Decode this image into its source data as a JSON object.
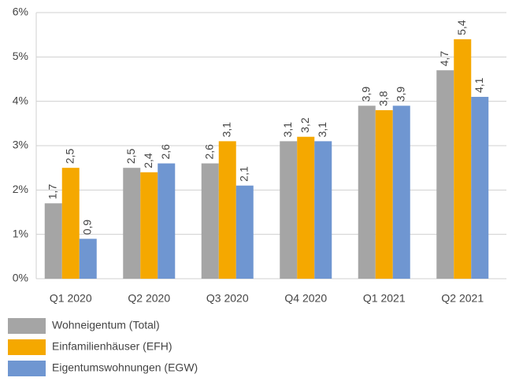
{
  "chart_data": {
    "type": "bar",
    "categories": [
      "Q1 2020",
      "Q2 2020",
      "Q3 2020",
      "Q4 2020",
      "Q1 2021",
      "Q2 2021"
    ],
    "series": [
      {
        "name": "Wohneigentum (Total)",
        "color": "#a5a5a5",
        "values": [
          1.7,
          2.5,
          2.6,
          3.1,
          3.9,
          4.7
        ],
        "value_labels": [
          "1,7",
          "2,5",
          "2,6",
          "3,1",
          "3,9",
          "4,7"
        ]
      },
      {
        "name": "Einfamilienhäuser (EFH)",
        "color": "#f5a800",
        "values": [
          2.5,
          2.4,
          3.1,
          3.2,
          3.8,
          5.4
        ],
        "value_labels": [
          "2,5",
          "2,4",
          "3,1",
          "3,2",
          "3,8",
          "5,4"
        ]
      },
      {
        "name": "Eigentumswohnungen (EGW)",
        "color": "#6f96d1",
        "values": [
          0.9,
          2.6,
          2.1,
          3.1,
          3.9,
          4.1
        ],
        "value_labels": [
          "0,9",
          "2,6",
          "2,1",
          "3,1",
          "3,9",
          "4,1"
        ]
      }
    ],
    "ylim": [
      0,
      6
    ],
    "yticks": [
      {
        "value": 0,
        "label": "0%"
      },
      {
        "value": 1,
        "label": "1%"
      },
      {
        "value": 2,
        "label": "2%"
      },
      {
        "value": 3,
        "label": "3%"
      },
      {
        "value": 4,
        "label": "4%"
      },
      {
        "value": 5,
        "label": "5%"
      },
      {
        "value": 6,
        "label": "6%"
      }
    ],
    "grid": true
  }
}
